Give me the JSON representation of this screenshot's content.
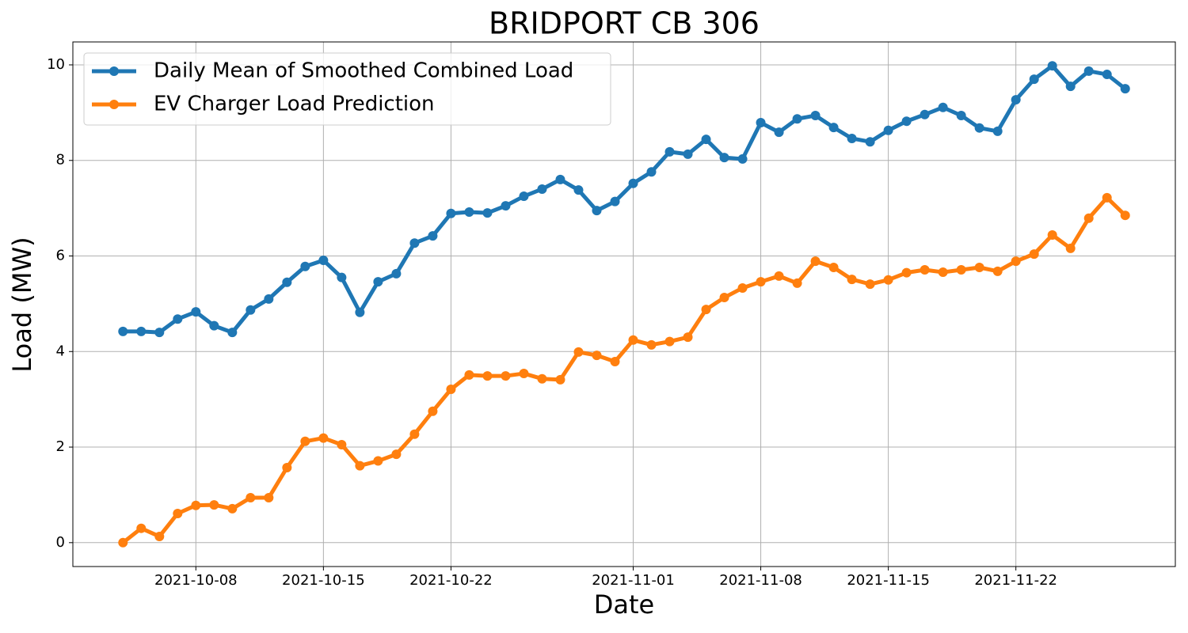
{
  "chart_data": {
    "type": "line",
    "title": "BRIDPORT CB 306",
    "xlabel": "Date",
    "ylabel": "Load (MW)",
    "x": [
      "2021-10-04",
      "2021-10-05",
      "2021-10-06",
      "2021-10-07",
      "2021-10-08",
      "2021-10-09",
      "2021-10-10",
      "2021-10-11",
      "2021-10-12",
      "2021-10-13",
      "2021-10-14",
      "2021-10-15",
      "2021-10-16",
      "2021-10-17",
      "2021-10-18",
      "2021-10-19",
      "2021-10-20",
      "2021-10-21",
      "2021-10-22",
      "2021-10-23",
      "2021-10-24",
      "2021-10-25",
      "2021-10-26",
      "2021-10-27",
      "2021-10-28",
      "2021-10-29",
      "2021-10-30",
      "2021-10-31",
      "2021-11-01",
      "2021-11-02",
      "2021-11-03",
      "2021-11-04",
      "2021-11-05",
      "2021-11-06",
      "2021-11-07",
      "2021-11-08",
      "2021-11-09",
      "2021-11-10",
      "2021-11-11",
      "2021-11-12",
      "2021-11-13",
      "2021-11-14",
      "2021-11-15",
      "2021-11-16",
      "2021-11-17",
      "2021-11-18",
      "2021-11-19",
      "2021-11-20",
      "2021-11-21",
      "2021-11-22",
      "2021-11-23",
      "2021-11-24",
      "2021-11-25",
      "2021-11-26",
      "2021-11-27",
      "2021-11-28"
    ],
    "series": [
      {
        "name": "Daily Mean of Smoothed Combined Load",
        "color": "#1f77b4",
        "values": [
          4.42,
          4.42,
          4.4,
          4.68,
          4.83,
          4.54,
          4.4,
          4.87,
          5.1,
          5.45,
          5.78,
          5.91,
          5.55,
          4.82,
          5.46,
          5.63,
          6.27,
          6.42,
          6.89,
          6.92,
          6.9,
          7.05,
          7.25,
          7.4,
          7.6,
          7.38,
          6.95,
          7.14,
          7.52,
          7.76,
          8.18,
          8.13,
          8.44,
          8.06,
          8.03,
          8.79,
          8.59,
          8.87,
          8.94,
          8.69,
          8.46,
          8.39,
          8.63,
          8.82,
          8.96,
          9.11,
          8.94,
          8.68,
          8.61,
          9.27,
          9.7,
          9.98,
          9.55,
          9.87,
          9.8,
          9.5
        ]
      },
      {
        "name": "EV Charger Load Prediction",
        "color": "#ff7f0e",
        "values": [
          0.0,
          0.3,
          0.13,
          0.61,
          0.78,
          0.79,
          0.71,
          0.94,
          0.94,
          1.57,
          2.12,
          2.19,
          2.05,
          1.61,
          1.71,
          1.85,
          2.27,
          2.75,
          3.21,
          3.51,
          3.49,
          3.49,
          3.54,
          3.43,
          3.41,
          3.99,
          3.92,
          3.79,
          4.24,
          4.14,
          4.21,
          4.3,
          4.88,
          5.13,
          5.33,
          5.46,
          5.58,
          5.43,
          5.89,
          5.76,
          5.51,
          5.41,
          5.5,
          5.65,
          5.71,
          5.66,
          5.71,
          5.76,
          5.68,
          5.89,
          6.04,
          6.44,
          6.16,
          6.79,
          7.22,
          6.85
        ]
      }
    ],
    "xlim": [
      "2021-10-01T06:00",
      "2021-11-30T18:00"
    ],
    "xticks": [
      "2021-10-08",
      "2021-10-15",
      "2021-10-22",
      "2021-11-01",
      "2021-11-08",
      "2021-11-15",
      "2021-11-22"
    ],
    "ylim": [
      -0.5,
      10.48
    ],
    "yticks": [
      0,
      2,
      4,
      6,
      8,
      10
    ],
    "grid": true,
    "legend": "upper left"
  }
}
